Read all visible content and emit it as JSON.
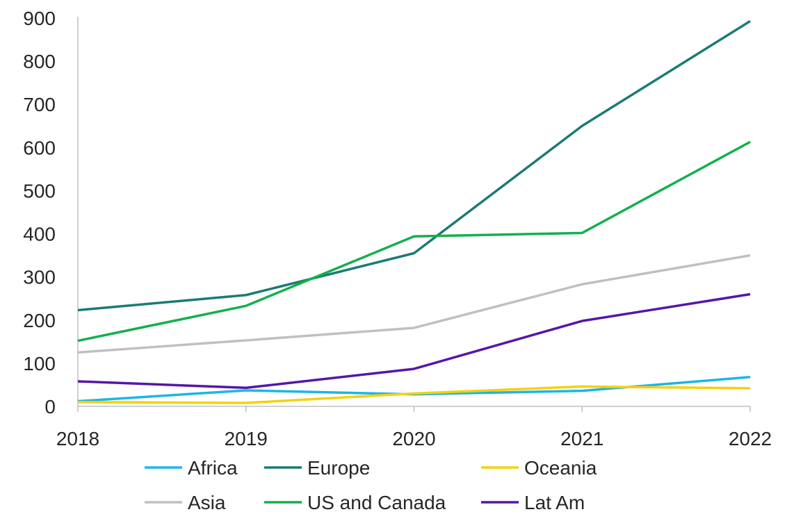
{
  "chart_data": {
    "type": "line",
    "title": "",
    "xlabel": "",
    "ylabel": "",
    "categories": [
      "2018",
      "2019",
      "2020",
      "2021",
      "2022"
    ],
    "ylim": [
      0,
      900
    ],
    "yticks": [
      0,
      100,
      200,
      300,
      400,
      500,
      600,
      700,
      800,
      900
    ],
    "grid": false,
    "legend_position": "bottom",
    "series": [
      {
        "name": "Africa",
        "color": "#1cb5e8",
        "values": [
          12,
          37,
          28,
          36,
          68
        ]
      },
      {
        "name": "Europe",
        "color": "#1b7b74",
        "values": [
          223,
          258,
          355,
          650,
          893
        ]
      },
      {
        "name": "Oceania",
        "color": "#f5d10f",
        "values": [
          10,
          8,
          30,
          46,
          42
        ]
      },
      {
        "name": "Asia",
        "color": "#c0c0c0",
        "values": [
          125,
          153,
          182,
          283,
          350
        ]
      },
      {
        "name": "US and Canada",
        "color": "#13b04c",
        "values": [
          152,
          233,
          394,
          402,
          613
        ]
      },
      {
        "name": "Lat Am",
        "color": "#5516a8",
        "values": [
          58,
          43,
          87,
          198,
          260
        ]
      }
    ]
  }
}
